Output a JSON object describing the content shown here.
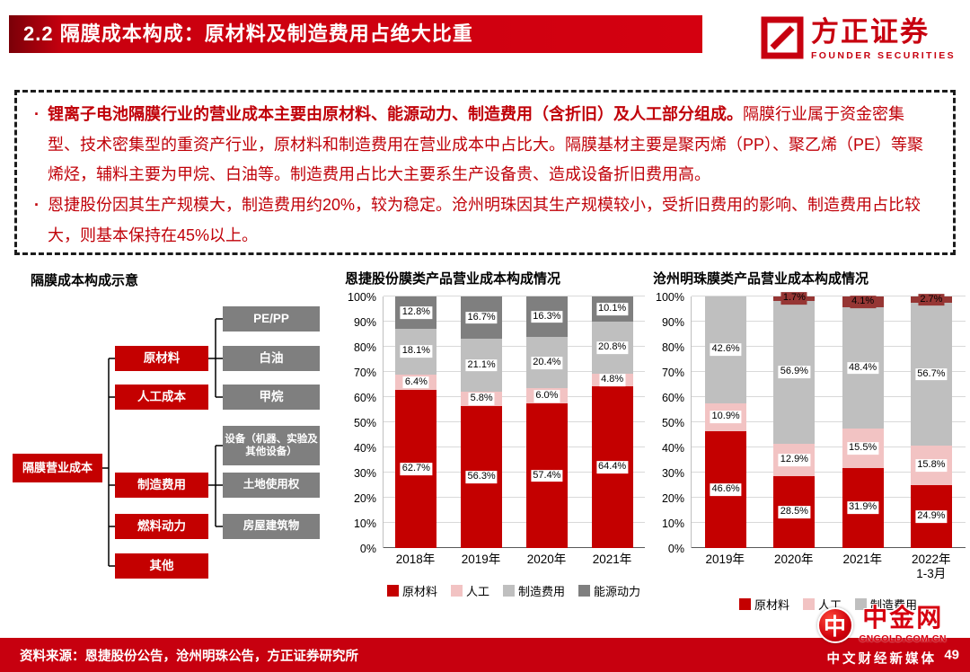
{
  "header": {
    "title": "2.2 隔膜成本构成：原材料及制造费用占绝大比重"
  },
  "brand": {
    "name": "方正证券",
    "subtitle": "FOUNDER SECURITIES"
  },
  "summary": {
    "bullet1_bold": "锂离子电池隔膜行业的营业成本主要由原材料、能源动力、制造费用（含折旧）及人工部分组成。",
    "bullet1_rest": "隔膜行业属于资金密集型、技术密集型的重资产行业，原材料和制造费用在营业成本中占比大。隔膜基材主要是聚丙烯（PP）、聚乙烯（PE）等聚烯烃，辅料主要为甲烷、白油等。制造费用占比大主要系生产设备贵、造成设备折旧费用高。",
    "bullet2": "恩捷股份因其生产规模大，制造费用约20%，较为稳定。沧州明珠因其生产规模较小，受折旧费用的影响、制造费用占比较大，则基本保持在45%以上。"
  },
  "diagram": {
    "title": "隔膜成本构成示意",
    "nodes": {
      "root": "隔膜营业成本",
      "raw": "原材料",
      "labor": "人工成本",
      "mfg": "制造费用",
      "fuel": "燃料动力",
      "other": "其他",
      "pepp": "PE/PP",
      "white_oil": "白油",
      "methane": "甲烷",
      "equipment": "设备（机器、实验及其他设备）",
      "land": "土地使用权",
      "building": "房屋建筑物"
    }
  },
  "chart_data": [
    {
      "type": "bar",
      "stacked": true,
      "title": "恩捷股份膜类产品营业成本构成情况",
      "categories": [
        "2018年",
        "2019年",
        "2020年",
        "2021年"
      ],
      "series": [
        {
          "name": "原材料",
          "color": "#c40000",
          "values": [
            62.7,
            56.3,
            57.4,
            64.4
          ]
        },
        {
          "name": "人工",
          "color": "#f2c3c3",
          "values": [
            6.4,
            5.8,
            6.0,
            4.8
          ]
        },
        {
          "name": "制造费用",
          "color": "#bfbfbf",
          "values": [
            18.1,
            21.1,
            20.4,
            20.8
          ]
        },
        {
          "name": "能源动力",
          "color": "#7f7f7f",
          "values": [
            12.8,
            16.7,
            16.3,
            10.1
          ]
        }
      ],
      "ylim": [
        0,
        100
      ],
      "ytick_step": 10,
      "unit": "%",
      "grid": true,
      "legend_position": "bottom"
    },
    {
      "type": "bar",
      "stacked": true,
      "title": "沧州明珠膜类产品营业成本构成情况",
      "categories": [
        "2019年",
        "2020年",
        "2021年",
        "2022年\n1-3月"
      ],
      "series": [
        {
          "name": "原材料",
          "color": "#c40000",
          "values": [
            46.6,
            28.5,
            31.9,
            24.9
          ]
        },
        {
          "name": "人工",
          "color": "#f2c3c3",
          "values": [
            10.9,
            12.9,
            15.5,
            15.8
          ]
        },
        {
          "name": "制造费用",
          "color": "#bfbfbf",
          "values": [
            42.6,
            56.9,
            48.4,
            56.7
          ]
        },
        {
          "name": "",
          "color": "#963634",
          "label_bg": "#963634",
          "values": [
            0,
            1.7,
            4.1,
            2.7
          ]
        }
      ],
      "ylim": [
        0,
        100
      ],
      "ytick_step": 10,
      "unit": "%",
      "grid": true,
      "legend_position": "bottom"
    }
  ],
  "footer": {
    "source": "资料来源：恩捷股份公告，沧州明珠公告，方正证券研究所",
    "page": "49"
  },
  "watermark": {
    "logo_glyph": "中",
    "name": "中金网",
    "domain": "CNGOLD.COM.CN",
    "tagline": "中文财经新媒体"
  }
}
